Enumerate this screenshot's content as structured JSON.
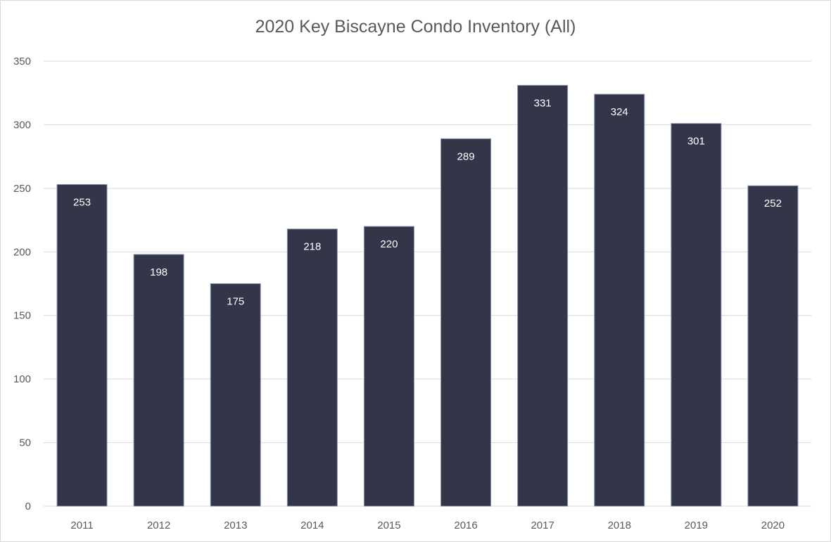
{
  "chart_data": {
    "type": "bar",
    "title": "2020 Key Biscayne Condo  Inventory (All)",
    "xlabel": "",
    "ylabel": "",
    "categories": [
      "2011",
      "2012",
      "2013",
      "2014",
      "2015",
      "2016",
      "2017",
      "2018",
      "2019",
      "2020"
    ],
    "values": [
      253,
      198,
      175,
      218,
      220,
      289,
      331,
      324,
      301,
      252
    ],
    "ylim": [
      0,
      350
    ],
    "yticks": [
      0,
      50,
      100,
      150,
      200,
      250,
      300,
      350
    ],
    "ytick_labels": [
      "0",
      "50",
      "100",
      "150",
      "200",
      "250",
      "300",
      "350"
    ],
    "data_labels": [
      "253",
      "198",
      "175",
      "218",
      "220",
      "289",
      "331",
      "324",
      "301",
      "252"
    ],
    "grid": true,
    "legend": "none",
    "colors": {
      "bar_fill": "#35354a",
      "bar_edge": "#8496b0",
      "gridline": "#d9d9d9",
      "text": "#595959",
      "data_label": "#ffffff"
    }
  }
}
